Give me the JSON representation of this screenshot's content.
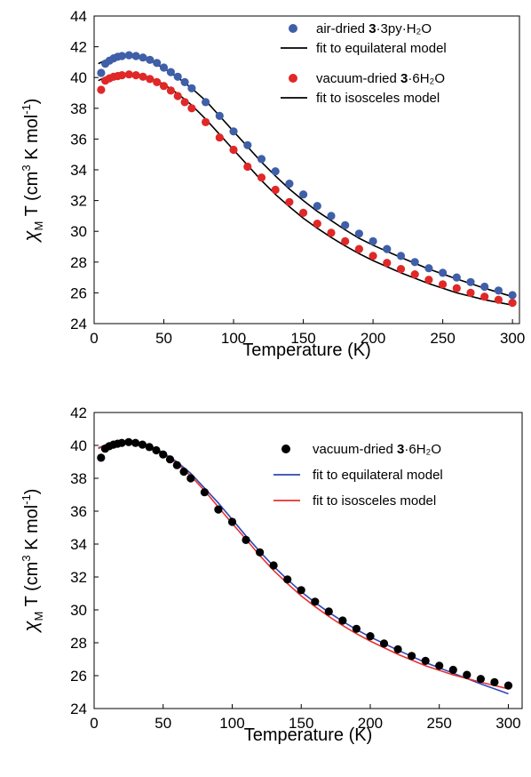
{
  "chart_data": [
    {
      "type": "scatter",
      "xlabel": "Temperature (K)",
      "ylabel_parts": [
        "χ",
        "M",
        " T (cm",
        "3",
        " K mol",
        "-1",
        ")"
      ],
      "xlim": [
        0,
        305
      ],
      "ylim": [
        24,
        44
      ],
      "xticks": [
        0,
        50,
        100,
        150,
        200,
        250,
        300
      ],
      "yticks": [
        24,
        26,
        28,
        30,
        32,
        34,
        36,
        38,
        40,
        42,
        44
      ],
      "grid": false,
      "legend_position": "top-right",
      "legend": [
        {
          "kind": "marker",
          "color": "#3f5fa8",
          "parts": [
            "air-dried ",
            "3",
            "·3py·H₂O"
          ]
        },
        {
          "kind": "line",
          "color": "#000000",
          "parts": [
            "fit to equilateral model"
          ]
        },
        {
          "kind": "marker",
          "color": "#e02828",
          "parts": [
            "vacuum-dried ",
            "3",
            "·6H₂O"
          ]
        },
        {
          "kind": "line",
          "color": "#000000",
          "parts": [
            "fit to isosceles model"
          ]
        }
      ],
      "series": [
        {
          "kind": "scatter",
          "color": "#3f5fa8",
          "x": [
            5,
            8,
            11,
            14,
            17,
            20,
            25,
            30,
            35,
            40,
            45,
            50,
            55,
            60,
            65,
            70,
            80,
            90,
            100,
            110,
            120,
            130,
            140,
            150,
            160,
            170,
            180,
            190,
            200,
            210,
            220,
            230,
            240,
            250,
            260,
            270,
            280,
            290,
            300
          ],
          "y": [
            40.3,
            40.9,
            41.1,
            41.25,
            41.35,
            41.4,
            41.45,
            41.4,
            41.3,
            41.15,
            40.95,
            40.65,
            40.35,
            40.05,
            39.7,
            39.3,
            38.4,
            37.5,
            36.5,
            35.6,
            34.7,
            33.9,
            33.1,
            32.4,
            31.65,
            31.0,
            30.4,
            29.85,
            29.35,
            28.85,
            28.4,
            28.0,
            27.6,
            27.3,
            27.0,
            26.7,
            26.4,
            26.15,
            25.85
          ]
        },
        {
          "kind": "scatter",
          "color": "#e02828",
          "x": [
            5,
            8,
            11,
            14,
            17,
            20,
            25,
            30,
            35,
            40,
            45,
            50,
            55,
            60,
            65,
            70,
            80,
            90,
            100,
            110,
            120,
            130,
            140,
            150,
            160,
            170,
            180,
            190,
            200,
            210,
            220,
            230,
            240,
            250,
            260,
            270,
            280,
            290,
            300
          ],
          "y": [
            39.2,
            39.8,
            39.95,
            40.05,
            40.1,
            40.15,
            40.2,
            40.15,
            40.05,
            39.9,
            39.7,
            39.45,
            39.15,
            38.8,
            38.4,
            38.0,
            37.1,
            36.1,
            35.3,
            34.2,
            33.5,
            32.7,
            31.9,
            31.2,
            30.5,
            29.9,
            29.35,
            28.85,
            28.4,
            27.95,
            27.55,
            27.2,
            26.85,
            26.55,
            26.3,
            26.0,
            25.75,
            25.55,
            25.35
          ]
        },
        {
          "kind": "line",
          "color": "#000000",
          "x": [
            3,
            10,
            20,
            28,
            40,
            50,
            60,
            70,
            80,
            90,
            100,
            110,
            120,
            130,
            140,
            150,
            160,
            170,
            180,
            190,
            200,
            220,
            240,
            260,
            280,
            300
          ],
          "y": [
            40.9,
            41.2,
            41.35,
            41.35,
            41.1,
            40.6,
            40.0,
            39.3,
            38.5,
            37.5,
            36.5,
            35.5,
            34.5,
            33.6,
            32.75,
            32.0,
            31.3,
            30.7,
            30.1,
            29.55,
            29.1,
            28.3,
            27.55,
            26.9,
            26.3,
            25.75
          ]
        },
        {
          "kind": "line",
          "color": "#000000",
          "x": [
            3,
            10,
            20,
            28,
            40,
            50,
            60,
            70,
            80,
            90,
            100,
            110,
            120,
            130,
            140,
            150,
            160,
            170,
            180,
            190,
            200,
            220,
            240,
            260,
            280,
            300
          ],
          "y": [
            39.8,
            40.1,
            40.25,
            40.25,
            40.0,
            39.55,
            38.95,
            38.2,
            37.3,
            36.3,
            35.3,
            34.3,
            33.3,
            32.4,
            31.6,
            30.85,
            30.2,
            29.6,
            29.05,
            28.55,
            28.1,
            27.3,
            26.6,
            26.0,
            25.55,
            25.2
          ]
        }
      ]
    },
    {
      "type": "scatter",
      "xlabel": "Temperature (K)",
      "ylabel_parts": [
        "χ",
        "M",
        " T (cm",
        "3",
        " K mol",
        "-1",
        ")"
      ],
      "xlim": [
        0,
        310
      ],
      "ylim": [
        24,
        42
      ],
      "xticks": [
        0,
        50,
        100,
        150,
        200,
        250,
        300
      ],
      "yticks": [
        24,
        26,
        28,
        30,
        32,
        34,
        36,
        38,
        40,
        42
      ],
      "grid": false,
      "legend_position": "top-right",
      "legend": [
        {
          "kind": "marker",
          "color": "#000000",
          "parts": [
            "vacuum-dried ",
            "3",
            "·6H₂O"
          ]
        },
        {
          "kind": "line",
          "color": "#3047b5",
          "parts": [
            "fit to equilateral model"
          ]
        },
        {
          "kind": "line",
          "color": "#e83030",
          "parts": [
            "fit to isosceles model"
          ]
        }
      ],
      "series": [
        {
          "kind": "scatter",
          "color": "#000000",
          "x": [
            5,
            8,
            11,
            14,
            17,
            20,
            25,
            30,
            35,
            40,
            45,
            50,
            55,
            60,
            65,
            70,
            80,
            90,
            100,
            110,
            120,
            130,
            140,
            150,
            160,
            170,
            180,
            190,
            200,
            210,
            220,
            230,
            240,
            250,
            260,
            270,
            280,
            290,
            300
          ],
          "y": [
            39.25,
            39.8,
            39.95,
            40.05,
            40.1,
            40.15,
            40.2,
            40.15,
            40.05,
            39.9,
            39.7,
            39.45,
            39.15,
            38.8,
            38.4,
            38.0,
            37.15,
            36.1,
            35.35,
            34.25,
            33.5,
            32.7,
            31.85,
            31.2,
            30.5,
            29.9,
            29.35,
            28.85,
            28.4,
            27.95,
            27.6,
            27.2,
            26.9,
            26.6,
            26.35,
            26.05,
            25.8,
            25.6,
            25.4
          ]
        },
        {
          "kind": "line",
          "color": "#3047b5",
          "x": [
            3,
            10,
            20,
            28,
            40,
            50,
            60,
            70,
            80,
            90,
            100,
            110,
            120,
            130,
            140,
            150,
            160,
            170,
            180,
            190,
            200,
            220,
            240,
            260,
            280,
            300
          ],
          "y": [
            39.85,
            40.1,
            40.2,
            40.2,
            40.0,
            39.55,
            39.0,
            38.3,
            37.4,
            36.5,
            35.5,
            34.5,
            33.55,
            32.65,
            31.85,
            31.1,
            30.45,
            29.85,
            29.3,
            28.8,
            28.35,
            27.55,
            26.8,
            26.15,
            25.5,
            24.9
          ]
        },
        {
          "kind": "line",
          "color": "#e83030",
          "x": [
            3,
            10,
            20,
            28,
            40,
            50,
            60,
            70,
            80,
            90,
            100,
            110,
            120,
            130,
            140,
            150,
            160,
            170,
            180,
            190,
            200,
            220,
            240,
            260,
            280,
            300
          ],
          "y": [
            39.8,
            40.1,
            40.25,
            40.25,
            40.0,
            39.5,
            38.9,
            38.15,
            37.25,
            36.25,
            35.25,
            34.3,
            33.3,
            32.4,
            31.6,
            30.85,
            30.2,
            29.6,
            29.05,
            28.55,
            28.1,
            27.3,
            26.6,
            26.05,
            25.6,
            25.2
          ]
        }
      ]
    }
  ]
}
